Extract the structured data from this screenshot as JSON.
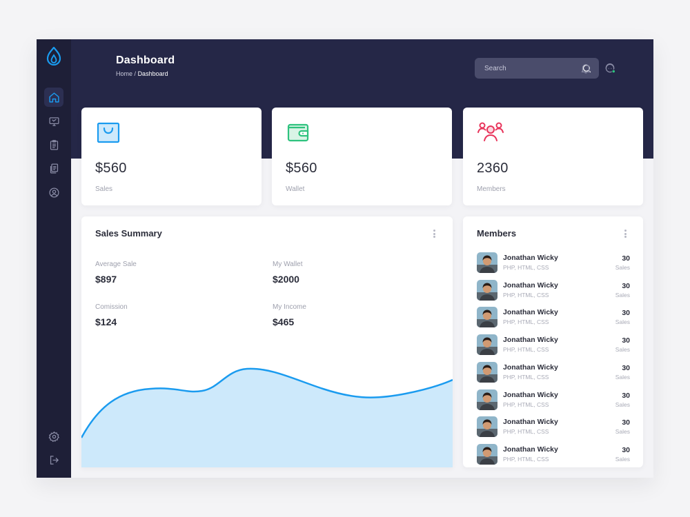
{
  "header": {
    "title": "Dashboard",
    "breadcrumb": {
      "home": "Home",
      "separator": "/",
      "current": "Dashboard"
    },
    "search": {
      "placeholder": "Search"
    }
  },
  "sidebar": {
    "items": [
      {
        "icon": "home-icon",
        "active": true
      },
      {
        "icon": "monitor-icon",
        "active": false
      },
      {
        "icon": "clipboard-icon",
        "active": false
      },
      {
        "icon": "documents-icon",
        "active": false
      },
      {
        "icon": "user-circle-icon",
        "active": false
      }
    ],
    "bottom": [
      {
        "icon": "settings-icon"
      },
      {
        "icon": "logout-icon"
      }
    ]
  },
  "stats": [
    {
      "value": "$560",
      "label": "Sales",
      "icon": "shopping-bag-icon",
      "color": "#1a9bef"
    },
    {
      "value": "$560",
      "label": "Wallet",
      "icon": "wallet-icon",
      "color": "#2ec27e"
    },
    {
      "value": "2360",
      "label": "Members",
      "icon": "members-icon",
      "color": "#e8335a"
    }
  ],
  "sales_summary": {
    "title": "Sales Summary",
    "metrics": [
      {
        "label": "Average Sale",
        "value": "$897"
      },
      {
        "label": "My Wallet",
        "value": "$2000"
      },
      {
        "label": "Comission",
        "value": "$124"
      },
      {
        "label": "My Income",
        "value": "$465"
      }
    ]
  },
  "members": {
    "title": "Members",
    "items": [
      {
        "name": "Jonathan Wicky",
        "skills": "PHP, HTML, CSS",
        "count": "30",
        "unit": "Sales"
      },
      {
        "name": "Jonathan Wicky",
        "skills": "PHP, HTML, CSS",
        "count": "30",
        "unit": "Sales"
      },
      {
        "name": "Jonathan Wicky",
        "skills": "PHP, HTML, CSS",
        "count": "30",
        "unit": "Sales"
      },
      {
        "name": "Jonathan Wicky",
        "skills": "PHP, HTML, CSS",
        "count": "30",
        "unit": "Sales"
      },
      {
        "name": "Jonathan Wicky",
        "skills": "PHP, HTML, CSS",
        "count": "30",
        "unit": "Sales"
      },
      {
        "name": "Jonathan Wicky",
        "skills": "PHP, HTML, CSS",
        "count": "30",
        "unit": "Sales"
      },
      {
        "name": "Jonathan Wicky",
        "skills": "PHP, HTML, CSS",
        "count": "30",
        "unit": "Sales"
      },
      {
        "name": "Jonathan Wicky",
        "skills": "PHP, HTML, CSS",
        "count": "30",
        "unit": "Sales"
      }
    ]
  },
  "colors": {
    "sidebar": "#1e1f37",
    "header": "#252747",
    "accent": "#1a9bef",
    "chart_fill": "#cde9fb",
    "online": "#2ec27e"
  }
}
